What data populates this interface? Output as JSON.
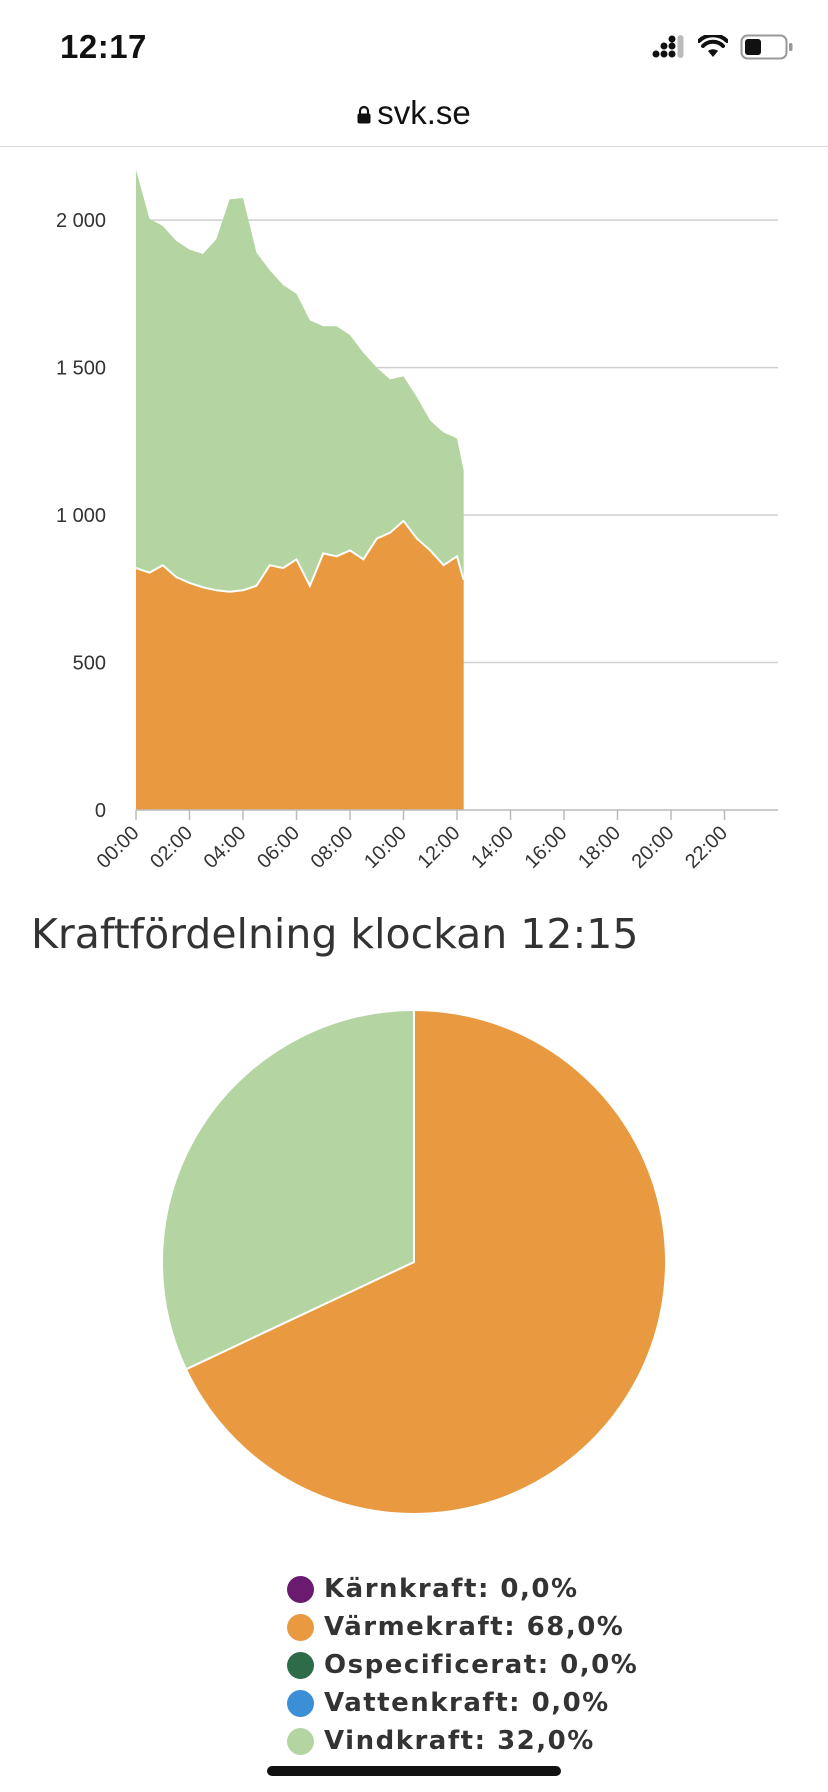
{
  "status_bar": {
    "time": "12:17"
  },
  "browser": {
    "url": "svk.se"
  },
  "chart_data": [
    {
      "type": "area",
      "stacked": true,
      "x": [
        "00:00",
        "00:30",
        "01:00",
        "01:30",
        "02:00",
        "02:30",
        "03:00",
        "03:30",
        "04:00",
        "04:30",
        "05:00",
        "05:30",
        "06:00",
        "06:30",
        "07:00",
        "07:30",
        "08:00",
        "08:30",
        "09:00",
        "09:30",
        "10:00",
        "10:30",
        "11:00",
        "11:30",
        "12:00",
        "12:15"
      ],
      "series": [
        {
          "name": "Värmekraft",
          "color": "#e99a40",
          "values": [
            820,
            805,
            830,
            790,
            770,
            755,
            745,
            740,
            745,
            760,
            830,
            820,
            850,
            760,
            870,
            860,
            880,
            850,
            920,
            940,
            980,
            920,
            880,
            830,
            860,
            780
          ]
        },
        {
          "name": "Vindkraft",
          "color": "#b4d5a2",
          "values": [
            1350,
            1200,
            1150,
            1140,
            1130,
            1130,
            1190,
            1330,
            1330,
            1130,
            1000,
            960,
            900,
            900,
            770,
            780,
            730,
            700,
            580,
            520,
            490,
            480,
            440,
            450,
            400,
            370
          ]
        }
      ],
      "yticks": [
        "0",
        "500",
        "1 000",
        "1 500",
        "2 000"
      ],
      "xticks": [
        "00:00",
        "02:00",
        "04:00",
        "06:00",
        "08:00",
        "10:00",
        "12:00",
        "14:00",
        "16:00",
        "18:00",
        "20:00",
        "22:00"
      ],
      "ylim": [
        0,
        2180
      ],
      "xlim_hours": [
        0,
        24
      ],
      "grid": true
    },
    {
      "type": "pie",
      "title": "Kraftfördelning klockan 12:15",
      "slices": [
        {
          "label": "Kärnkraft",
          "value": 0.0,
          "display": "0,0%",
          "color": "#6a1b6f"
        },
        {
          "label": "Värmekraft",
          "value": 68.0,
          "display": "68,0%",
          "color": "#e99a40"
        },
        {
          "label": "Ospecificerat",
          "value": 0.0,
          "display": "0,0%",
          "color": "#2e6b48"
        },
        {
          "label": "Vattenkraft",
          "value": 0.0,
          "display": "0,0%",
          "color": "#3b8fd6"
        },
        {
          "label": "Vindkraft",
          "value": 32.0,
          "display": "32,0%",
          "color": "#b4d5a2"
        }
      ]
    }
  ]
}
